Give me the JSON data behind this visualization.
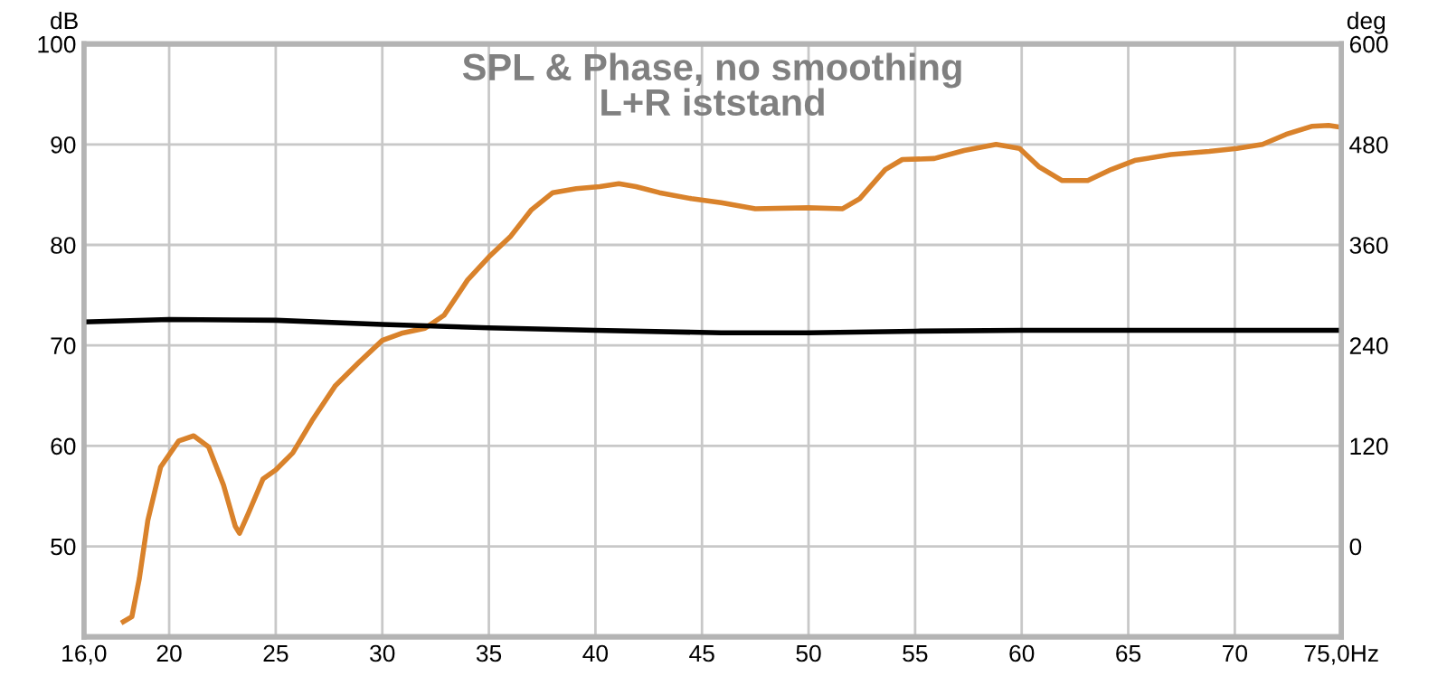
{
  "chart_data": {
    "type": "line",
    "title": "SPL & Phase, no smoothing\nL+R iststand",
    "ylabel": "dB",
    "y2label": "deg",
    "xlim": [
      16,
      75
    ],
    "xticks": [
      {
        "value": 16,
        "label": "16,0"
      },
      20,
      25,
      30,
      35,
      40,
      45,
      50,
      55,
      60,
      65,
      70,
      {
        "value": 75,
        "label": "75,0Hz"
      }
    ],
    "ylim": [
      41,
      100
    ],
    "yticks": [
      50,
      60,
      70,
      80,
      90,
      100
    ],
    "y2lim": [
      -108,
      600
    ],
    "y2ticks": [
      0,
      120,
      240,
      360,
      480,
      600
    ],
    "grid": true,
    "marker": "none",
    "line_style": "solid",
    "series": [
      {
        "color": "#d9822b",
        "x": [
          17.85,
          18.25,
          18.6,
          19.0,
          19.6,
          20.45,
          21.15,
          21.85,
          22.55,
          23.1,
          23.3,
          23.7,
          24.4,
          25.0,
          25.8,
          26.7,
          27.8,
          28.9,
          30.0,
          30.9,
          32.0,
          32.9,
          34.0,
          35.0,
          36.0,
          37.0,
          38.0,
          39.1,
          40.2,
          41.1,
          41.9,
          43.0,
          44.5,
          45.9,
          47.5,
          50.0,
          51.6,
          52.4,
          53.6,
          54.4,
          55.9,
          57.3,
          58.8,
          59.9,
          60.8,
          61.9,
          63.1,
          64.2,
          65.3,
          67.0,
          68.8,
          70.1,
          71.3,
          72.4,
          73.6,
          74.4,
          75.0
        ],
        "values": [
          42.5,
          43.0,
          46.8,
          52.6,
          57.9,
          60.5,
          61.0,
          59.9,
          56.1,
          52.0,
          51.3,
          53.2,
          56.7,
          57.6,
          59.3,
          62.5,
          66.0,
          68.3,
          70.5,
          71.2,
          71.7,
          73.0,
          76.5,
          78.8,
          80.8,
          83.5,
          85.2,
          85.6,
          85.8,
          86.1,
          85.8,
          85.2,
          84.6,
          84.2,
          83.6,
          83.7,
          83.6,
          84.6,
          87.5,
          88.5,
          88.6,
          89.4,
          90.0,
          89.6,
          87.8,
          86.4,
          86.4,
          87.5,
          88.4,
          89.0,
          89.3,
          89.6,
          90.0,
          91.0,
          91.8,
          91.9,
          91.7
        ]
      },
      {
        "color": "#000000",
        "axis": "y2",
        "x": [
          16,
          20,
          25,
          30,
          35,
          40,
          45.9,
          50,
          55,
          60,
          65,
          70,
          75
        ],
        "values": [
          268,
          271,
          270,
          265,
          261,
          258,
          255,
          255,
          257,
          258,
          258,
          258,
          258
        ]
      }
    ]
  }
}
